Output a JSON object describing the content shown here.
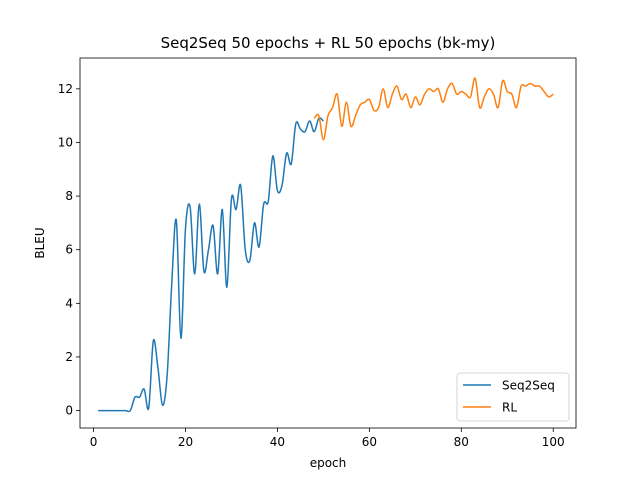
{
  "chart_data": {
    "type": "line",
    "title": "Seq2Seq 50 epochs + RL 50 epochs (bk-my)",
    "xlabel": "epoch",
    "ylabel": "BLEU",
    "xlim": [
      -2.95,
      104.95
    ],
    "ylim": [
      -0.65,
      13.15
    ],
    "xticks": [
      0,
      20,
      40,
      60,
      80,
      100
    ],
    "yticks": [
      0,
      2,
      4,
      6,
      8,
      10,
      12
    ],
    "grid": false,
    "legend_position": "lower-right",
    "series": [
      {
        "name": "Seq2Seq",
        "color": "#1f77b4",
        "x": [
          1,
          2,
          3,
          4,
          5,
          6,
          7,
          8,
          9,
          10,
          11,
          12,
          13,
          14,
          15,
          16,
          17,
          18,
          19,
          20,
          21,
          22,
          23,
          24,
          25,
          26,
          27,
          28,
          29,
          30,
          31,
          32,
          33,
          34,
          35,
          36,
          37,
          38,
          39,
          40,
          41,
          42,
          43,
          44,
          45,
          46,
          47,
          48,
          49,
          50
        ],
        "y": [
          0,
          0,
          0,
          0,
          0,
          0,
          0,
          0,
          0.5,
          0.5,
          0.8,
          0.1,
          2.6,
          1.6,
          0.2,
          1.3,
          4.7,
          7.1,
          2.7,
          6.8,
          7.6,
          5.1,
          7.7,
          5.2,
          6.0,
          6.9,
          5.1,
          7.5,
          4.6,
          7.9,
          7.5,
          8.4,
          6.0,
          5.6,
          7.0,
          6.1,
          7.7,
          7.8,
          9.5,
          8.2,
          8.4,
          9.6,
          9.2,
          10.7,
          10.5,
          10.4,
          10.8,
          10.4,
          10.9,
          10.8
        ]
      },
      {
        "name": "RL",
        "color": "#ff7f0e",
        "x": [
          48,
          49,
          50,
          51,
          52,
          53,
          54,
          55,
          56,
          57,
          58,
          59,
          60,
          61,
          62,
          63,
          64,
          65,
          66,
          67,
          68,
          69,
          70,
          71,
          72,
          73,
          74,
          75,
          76,
          77,
          78,
          79,
          80,
          81,
          82,
          83,
          84,
          85,
          86,
          87,
          88,
          89,
          90,
          91,
          92,
          93,
          94,
          95,
          96,
          97,
          98,
          99,
          100
        ],
        "y": [
          10.9,
          11.0,
          10.1,
          11.0,
          11.3,
          11.8,
          10.6,
          11.5,
          10.6,
          11.0,
          11.4,
          11.5,
          11.6,
          11.2,
          11.3,
          12.0,
          11.3,
          11.8,
          12.1,
          11.6,
          11.8,
          11.3,
          11.7,
          11.4,
          11.8,
          12.0,
          11.9,
          12.0,
          11.5,
          12.0,
          12.2,
          11.8,
          11.9,
          11.8,
          11.7,
          12.4,
          11.3,
          11.7,
          12.0,
          11.8,
          11.3,
          12.3,
          11.9,
          11.8,
          11.3,
          12.1,
          12.1,
          12.2,
          12.1,
          12.1,
          11.9,
          11.7,
          11.8
        ]
      }
    ]
  }
}
